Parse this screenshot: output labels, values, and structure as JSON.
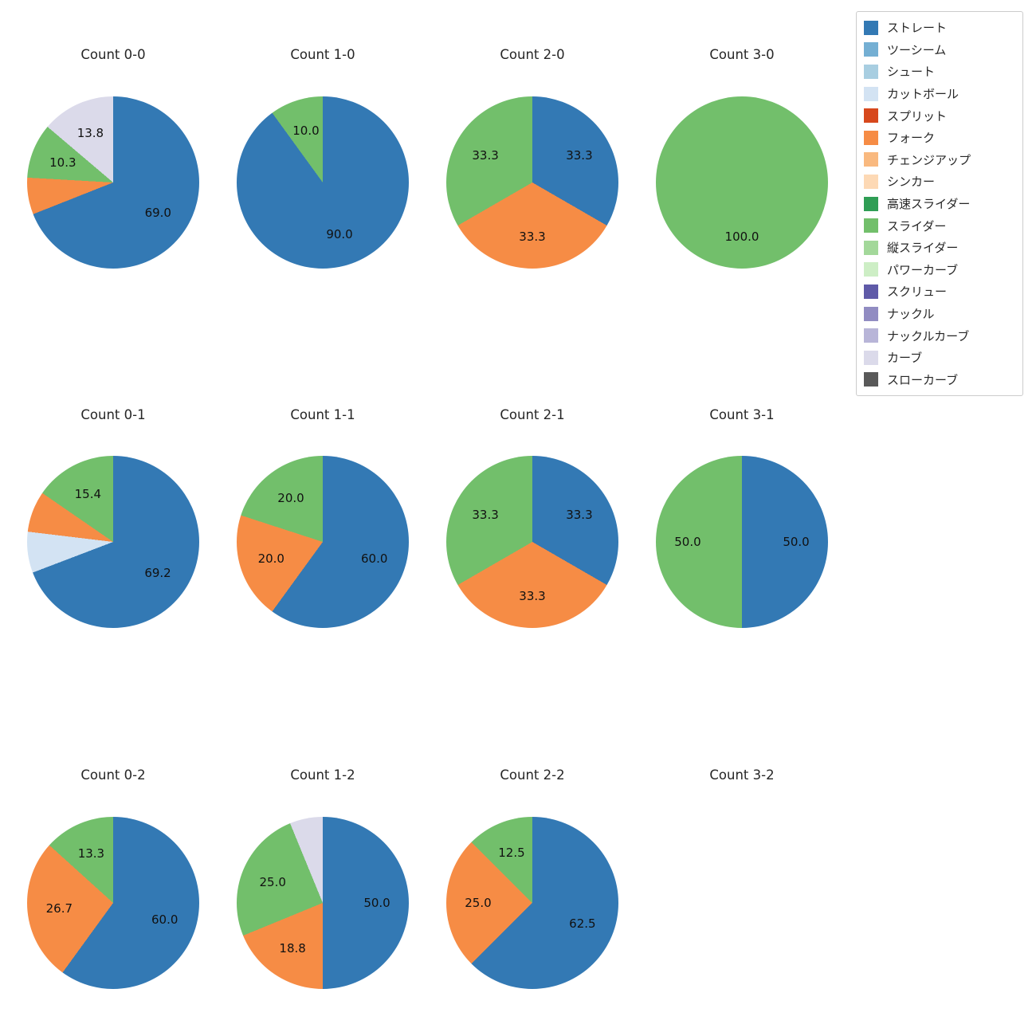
{
  "legend": {
    "items": [
      {
        "label": "ストレート",
        "color": "#3379b4"
      },
      {
        "label": "ツーシーム",
        "color": "#74afd3"
      },
      {
        "label": "シュート",
        "color": "#a8cee1"
      },
      {
        "label": "カットボール",
        "color": "#d3e3f3"
      },
      {
        "label": "スプリット",
        "color": "#d7481d"
      },
      {
        "label": "フォーク",
        "color": "#f68c45"
      },
      {
        "label": "チェンジアップ",
        "color": "#f9b97f"
      },
      {
        "label": "シンカー",
        "color": "#fdd9b5"
      },
      {
        "label": "高速スライダー",
        "color": "#2f9e55"
      },
      {
        "label": "スライダー",
        "color": "#72bf6b"
      },
      {
        "label": "縦スライダー",
        "color": "#a3d89a"
      },
      {
        "label": "パワーカーブ",
        "color": "#cdeec5"
      },
      {
        "label": "スクリュー",
        "color": "#5f5aa8"
      },
      {
        "label": "ナックル",
        "color": "#918cc2"
      },
      {
        "label": "ナックルカーブ",
        "color": "#b8b5d8"
      },
      {
        "label": "カーブ",
        "color": "#dbdaea"
      },
      {
        "label": "スローカーブ",
        "color": "#595959"
      }
    ]
  },
  "chart_data": [
    {
      "type": "pie",
      "unit": "percent",
      "title": "Count 0-0",
      "labels": [
        "ストレート",
        "フォーク",
        "スライダー",
        "カーブ"
      ],
      "values": [
        69.0,
        6.9,
        10.3,
        13.8
      ],
      "pct_labels": [
        "69.0",
        "",
        "10.3",
        "13.8"
      ]
    },
    {
      "type": "pie",
      "unit": "percent",
      "title": "Count 1-0",
      "labels": [
        "ストレート",
        "スライダー"
      ],
      "values": [
        90.0,
        10.0
      ],
      "pct_labels": [
        "90.0",
        "10.0"
      ]
    },
    {
      "type": "pie",
      "unit": "percent",
      "title": "Count 2-0",
      "labels": [
        "ストレート",
        "フォーク",
        "スライダー"
      ],
      "values": [
        33.3,
        33.3,
        33.3
      ],
      "pct_labels": [
        "33.3",
        "33.3",
        "33.3"
      ]
    },
    {
      "type": "pie",
      "unit": "percent",
      "title": "Count 3-0",
      "labels": [
        "スライダー"
      ],
      "values": [
        100.0
      ],
      "pct_labels": [
        "100.0"
      ]
    },
    {
      "type": "pie",
      "unit": "percent",
      "title": "Count 0-1",
      "labels": [
        "ストレート",
        "カットボール",
        "フォーク",
        "スライダー"
      ],
      "values": [
        69.2,
        7.7,
        7.7,
        15.4
      ],
      "pct_labels": [
        "69.2",
        "",
        "",
        "15.4"
      ]
    },
    {
      "type": "pie",
      "unit": "percent",
      "title": "Count 1-1",
      "labels": [
        "ストレート",
        "フォーク",
        "スライダー"
      ],
      "values": [
        60.0,
        20.0,
        20.0
      ],
      "pct_labels": [
        "60.0",
        "20.0",
        "20.0"
      ]
    },
    {
      "type": "pie",
      "unit": "percent",
      "title": "Count 2-1",
      "labels": [
        "ストレート",
        "フォーク",
        "スライダー"
      ],
      "values": [
        33.3,
        33.3,
        33.3
      ],
      "pct_labels": [
        "33.3",
        "33.3",
        "33.3"
      ]
    },
    {
      "type": "pie",
      "unit": "percent",
      "title": "Count 3-1",
      "labels": [
        "ストレート",
        "スライダー"
      ],
      "values": [
        50.0,
        50.0
      ],
      "pct_labels": [
        "50.0",
        "50.0"
      ]
    },
    {
      "type": "pie",
      "unit": "percent",
      "title": "Count 0-2",
      "labels": [
        "ストレート",
        "フォーク",
        "スライダー"
      ],
      "values": [
        60.0,
        26.7,
        13.3
      ],
      "pct_labels": [
        "60.0",
        "26.7",
        "13.3"
      ]
    },
    {
      "type": "pie",
      "unit": "percent",
      "title": "Count 1-2",
      "labels": [
        "ストレート",
        "フォーク",
        "スライダー",
        "カーブ"
      ],
      "values": [
        50.0,
        18.8,
        25.0,
        6.2
      ],
      "pct_labels": [
        "50.0",
        "18.8",
        "25.0",
        ""
      ]
    },
    {
      "type": "pie",
      "unit": "percent",
      "title": "Count 2-2",
      "labels": [
        "ストレート",
        "フォーク",
        "スライダー"
      ],
      "values": [
        62.5,
        25.0,
        12.5
      ],
      "pct_labels": [
        "62.5",
        "25.0",
        "12.5"
      ]
    },
    {
      "type": "pie",
      "unit": "percent",
      "title": "Count 3-2",
      "labels": [],
      "values": [],
      "pct_labels": []
    }
  ]
}
